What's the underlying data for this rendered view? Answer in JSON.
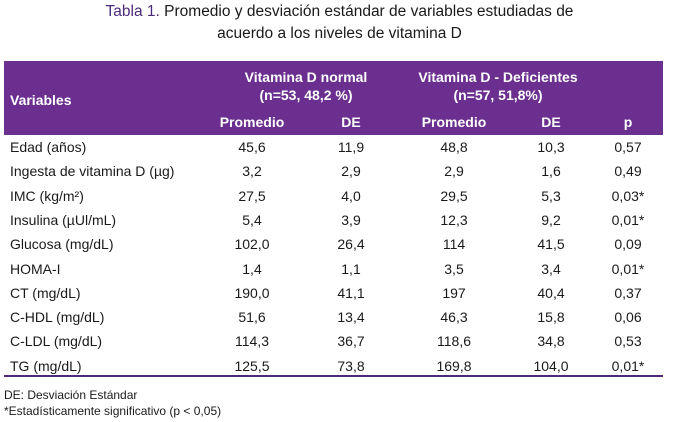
{
  "caption": {
    "label": "Tabla 1.",
    "text_line1": "Promedio y desviación estándar de variables estudiadas de",
    "text_line2": "acuerdo a los niveles de vitamina D"
  },
  "header": {
    "variables": "Variables",
    "group_normal_line1": "Vitamina D normal",
    "group_normal_line2": "(n=53, 48,2 %)",
    "group_def_line1": "Vitamina D - Deficientes",
    "group_def_line2": "(n=57, 51,8%)",
    "promedio": "Promedio",
    "de": "DE",
    "p": "p"
  },
  "colors": {
    "header_bg": "#6a2f8f",
    "caption_label": "#4b2a7b",
    "rule": "#4b2a7b"
  },
  "rows": [
    {
      "variable": "Edad (años)",
      "normal_mean": "45,6",
      "normal_de": "11,9",
      "def_mean": "48,8",
      "def_de": "10,3",
      "p": "0,57"
    },
    {
      "variable": "Ingesta de vitamina D (µg)",
      "normal_mean": "3,2",
      "normal_de": "2,9",
      "def_mean": "2,9",
      "def_de": "1,6",
      "p": "0,49"
    },
    {
      "variable": "IMC (kg/m²)",
      "normal_mean": "27,5",
      "normal_de": "4,0",
      "def_mean": "29,5",
      "def_de": "5,3",
      "p": "0,03*"
    },
    {
      "variable": "Insulina (µUl/mL)",
      "normal_mean": "5,4",
      "normal_de": "3,9",
      "def_mean": "12,3",
      "def_de": "9,2",
      "p": "0,01*"
    },
    {
      "variable": "Glucosa (mg/dL)",
      "normal_mean": "102,0",
      "normal_de": "26,4",
      "def_mean": "114",
      "def_de": "41,5",
      "p": "0,09"
    },
    {
      "variable": "HOMA-I",
      "normal_mean": "1,4",
      "normal_de": "1,1",
      "def_mean": "3,5",
      "def_de": "3,4",
      "p": "0,01*"
    },
    {
      "variable": "CT (mg/dL)",
      "normal_mean": "190,0",
      "normal_de": "41,1",
      "def_mean": "197",
      "def_de": "40,4",
      "p": "0,37"
    },
    {
      "variable": "C-HDL (mg/dL)",
      "normal_mean": "51,6",
      "normal_de": "13,4",
      "def_mean": "46,3",
      "def_de": "15,8",
      "p": "0,06"
    },
    {
      "variable": "C-LDL (mg/dL)",
      "normal_mean": "114,3",
      "normal_de": "36,7",
      "def_mean": "118,6",
      "def_de": "34,8",
      "p": "0,53"
    },
    {
      "variable": "TG (mg/dL)",
      "normal_mean": "125,5",
      "normal_de": "73,8",
      "def_mean": "169,8",
      "def_de": "104,0",
      "p": "0,01*"
    }
  ],
  "notes": {
    "de_note": "DE: Desviación Estándar",
    "sig_note": "*Estadísticamente significativo (p < 0,05)"
  }
}
